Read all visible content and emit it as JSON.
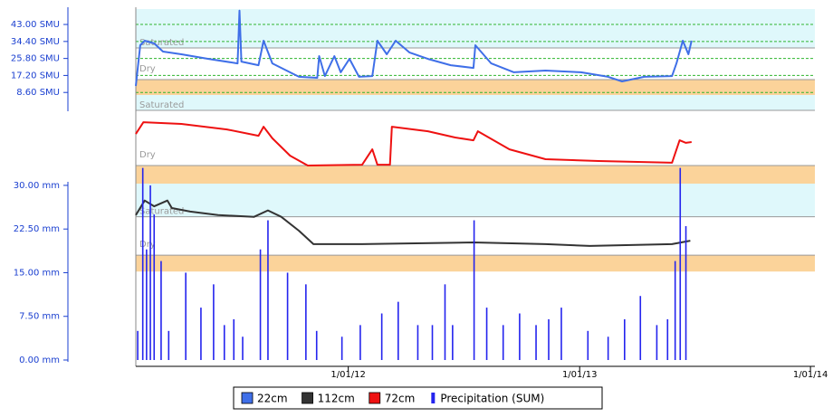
{
  "x_axis": {
    "xlim": [
      "2011-01-30",
      "2014-01-08"
    ],
    "xticks": [
      {
        "value": "2012-01-01",
        "label": "1/01/12"
      },
      {
        "value": "2013-01-01",
        "label": "1/01/13"
      },
      {
        "value": "2014-01-01",
        "label": "1/01/14"
      }
    ]
  },
  "legend_position": "bottom",
  "chart_data": [
    {
      "type": "line",
      "ylim": [
        0,
        50.8
      ],
      "yticks": [
        {
          "value": 43,
          "label": "43.00 SMU"
        },
        {
          "value": 34.4,
          "label": "34.40 SMU"
        },
        {
          "value": 25.8,
          "label": "25.80 SMU"
        },
        {
          "value": 17.2,
          "label": "17.20 SMU"
        },
        {
          "value": 8.6,
          "label": "8.60 SMU"
        }
      ],
      "grid": true,
      "bands": [
        {
          "label": "Saturated",
          "from": 31.1,
          "to": 50.8,
          "color": "#dff8fb"
        },
        {
          "label": "Dry",
          "from": 7.3,
          "to": 15.1,
          "color": "#fbd39a"
        }
      ],
      "series": [
        {
          "name": "22cm",
          "color": "#3f6fe8",
          "x": [
            "2011-01-30",
            "2011-02-06",
            "2011-02-13",
            "2011-02-28",
            "2011-03-14",
            "2011-04-12",
            "2011-05-25",
            "2011-07-10",
            "2011-07-13",
            "2011-07-16",
            "2011-08-12",
            "2011-08-20",
            "2011-09-03",
            "2011-10-15",
            "2011-11-13",
            "2011-11-16",
            "2011-11-25",
            "2011-12-10",
            "2011-12-20",
            "2012-01-03",
            "2012-01-18",
            "2012-02-08",
            "2012-02-16",
            "2012-03-02",
            "2012-03-16",
            "2012-04-07",
            "2012-05-06",
            "2012-06-11",
            "2012-07-17",
            "2012-07-20",
            "2012-08-14",
            "2012-09-19",
            "2012-11-08",
            "2013-01-03",
            "2013-02-15",
            "2013-03-09",
            "2013-04-13",
            "2013-05-27",
            "2013-06-03",
            "2013-06-13",
            "2013-06-22",
            "2013-06-27"
          ],
          "values": [
            11.9,
            32.5,
            34.8,
            33.4,
            29.3,
            27.9,
            25.6,
            23.3,
            50,
            24.2,
            22.4,
            34.8,
            23.3,
            16.5,
            16.0,
            27,
            16.9,
            27,
            18.8,
            25.6,
            16.5,
            16.9,
            34.8,
            27.9,
            34.8,
            28.8,
            25.6,
            22.4,
            21.0,
            32.5,
            23.3,
            18.8,
            19.7,
            18.8,
            16.5,
            14.2,
            16.5,
            16.9,
            23.3,
            34.8,
            27.9,
            34.8
          ]
        }
      ]
    },
    {
      "type": "line",
      "ylim": [
        0,
        45
      ],
      "bands": [
        {
          "label": "Saturated",
          "from": 37.2,
          "to": 45,
          "color": "#dff8fb"
        },
        {
          "label": "Dry",
          "from": 0,
          "to": 9.2,
          "color": "#fbd39a"
        }
      ],
      "series": [
        {
          "name": "72cm",
          "color": "#ee1111",
          "x": [
            "2011-01-30",
            "2011-02-11",
            "2011-04-12",
            "2011-06-23",
            "2011-08-12",
            "2011-08-20",
            "2011-09-03",
            "2011-10-01",
            "2011-10-29",
            "2012-01-23",
            "2012-02-08",
            "2012-02-16",
            "2012-03-07",
            "2012-03-10",
            "2012-05-06",
            "2012-06-18",
            "2012-07-17",
            "2012-07-24",
            "2012-09-12",
            "2012-11-08",
            "2013-01-31",
            "2013-05-27",
            "2013-06-08",
            "2013-06-18",
            "2013-06-27"
          ],
          "values": [
            25.2,
            31.2,
            30.3,
            27.5,
            24.3,
            28.9,
            23.0,
            14.2,
            9.2,
            9.6,
            17.4,
            9.6,
            9.6,
            28.9,
            26.6,
            23.4,
            22.0,
            26.6,
            17.4,
            12.4,
            11.5,
            10.6,
            22.0,
            20.7,
            21.1
          ]
        }
      ]
    },
    {
      "type": "line",
      "ylim": [
        0,
        30.3
      ],
      "yticks": [
        {
          "value": 30,
          "label": "30.00 mm"
        },
        {
          "value": 22.5,
          "label": "22.50 mm"
        },
        {
          "value": 15,
          "label": "15.00 mm"
        },
        {
          "value": 7.5,
          "label": "7.50 mm"
        },
        {
          "value": 0,
          "label": "0.00 mm"
        }
      ],
      "bands": [
        {
          "label": "Saturated",
          "from": 24.6,
          "to": 30.3,
          "color": "#dff8fb"
        },
        {
          "label": "Dry",
          "from": 15.2,
          "to": 18.0,
          "color": "#fbd39a"
        }
      ],
      "series": [
        {
          "name": "112cm",
          "color": "#333333",
          "x": [
            "2011-01-30",
            "2011-02-13",
            "2011-02-28",
            "2011-03-21",
            "2011-03-28",
            "2011-04-26",
            "2011-06-09",
            "2011-08-05",
            "2011-08-27",
            "2011-09-17",
            "2011-10-15",
            "2011-11-07",
            "2012-01-23",
            "2012-07-17",
            "2012-11-08",
            "2013-01-17",
            "2013-05-27",
            "2013-06-25"
          ],
          "values": [
            24.9,
            27.4,
            26.4,
            27.4,
            26.1,
            25.5,
            24.9,
            24.6,
            25.7,
            24.6,
            22.2,
            19.9,
            19.9,
            20.2,
            19.9,
            19.6,
            19.9,
            20.5
          ]
        },
        {
          "name": "Precipitation (SUM)",
          "color": "#2424ee",
          "type": "bar",
          "x": [
            "2011-02-02",
            "2011-02-10",
            "2011-02-16",
            "2011-02-22",
            "2011-02-28",
            "2011-03-11",
            "2011-03-23",
            "2011-04-19",
            "2011-05-13",
            "2011-06-02",
            "2011-06-19",
            "2011-07-04",
            "2011-07-18",
            "2011-08-15",
            "2011-08-27",
            "2011-09-27",
            "2011-10-26",
            "2011-11-12",
            "2011-12-22",
            "2012-01-20",
            "2012-02-23",
            "2012-03-20",
            "2012-04-20",
            "2012-05-13",
            "2012-06-02",
            "2012-06-14",
            "2012-07-18",
            "2012-08-07",
            "2012-09-02",
            "2012-09-28",
            "2012-10-24",
            "2012-11-13",
            "2012-12-03",
            "2013-01-14",
            "2013-02-15",
            "2013-03-13",
            "2013-04-07",
            "2013-05-03",
            "2013-05-20",
            "2013-06-01",
            "2013-06-09",
            "2013-06-18"
          ],
          "values": [
            5,
            33,
            19,
            30,
            25,
            17,
            5,
            15,
            9,
            13,
            6,
            7,
            4,
            19,
            24,
            15,
            13,
            5,
            4,
            6,
            8,
            10,
            6,
            6,
            13,
            6,
            24,
            9,
            6,
            8,
            6,
            7,
            9,
            5,
            4,
            7,
            11,
            6,
            7,
            17,
            33,
            23
          ]
        }
      ]
    }
  ]
}
